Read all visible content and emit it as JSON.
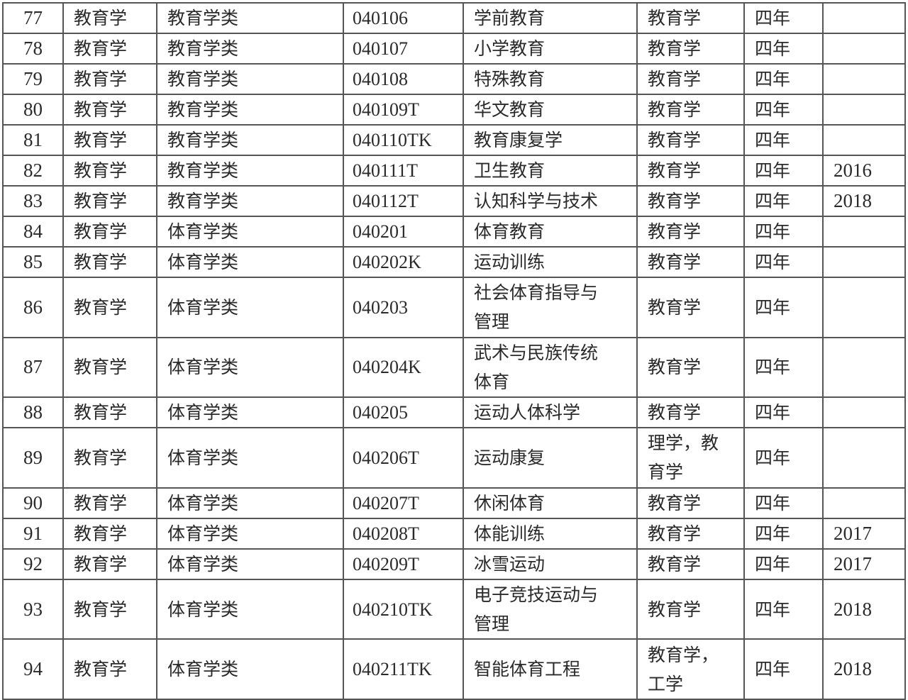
{
  "rows": [
    {
      "no": "77",
      "category": "教育学",
      "class": "教育学类",
      "code": "040106",
      "major": "学前教育",
      "degree": "教育学",
      "years": "四年",
      "added": ""
    },
    {
      "no": "78",
      "category": "教育学",
      "class": "教育学类",
      "code": "040107",
      "major": "小学教育",
      "degree": "教育学",
      "years": "四年",
      "added": ""
    },
    {
      "no": "79",
      "category": "教育学",
      "class": "教育学类",
      "code": "040108",
      "major": "特殊教育",
      "degree": "教育学",
      "years": "四年",
      "added": ""
    },
    {
      "no": "80",
      "category": "教育学",
      "class": "教育学类",
      "code": "040109T",
      "major": "华文教育",
      "degree": "教育学",
      "years": "四年",
      "added": ""
    },
    {
      "no": "81",
      "category": "教育学",
      "class": "教育学类",
      "code": "040110TK",
      "major": "教育康复学",
      "degree": "教育学",
      "years": "四年",
      "added": ""
    },
    {
      "no": "82",
      "category": "教育学",
      "class": "教育学类",
      "code": "040111T",
      "major": "卫生教育",
      "degree": "教育学",
      "years": "四年",
      "added": "2016"
    },
    {
      "no": "83",
      "category": "教育学",
      "class": "教育学类",
      "code": "040112T",
      "major": "认知科学与技术",
      "degree": "教育学",
      "years": "四年",
      "added": "2018"
    },
    {
      "no": "84",
      "category": "教育学",
      "class": "体育学类",
      "code": "040201",
      "major": "体育教育",
      "degree": "教育学",
      "years": "四年",
      "added": ""
    },
    {
      "no": "85",
      "category": "教育学",
      "class": "体育学类",
      "code": "040202K",
      "major": "运动训练",
      "degree": "教育学",
      "years": "四年",
      "added": ""
    },
    {
      "no": "86",
      "category": "教育学",
      "class": "体育学类",
      "code": "040203",
      "major": "社会体育指导与管理",
      "degree": "教育学",
      "years": "四年",
      "added": ""
    },
    {
      "no": "87",
      "category": "教育学",
      "class": "体育学类",
      "code": "040204K",
      "major": "武术与民族传统体育",
      "degree": "教育学",
      "years": "四年",
      "added": ""
    },
    {
      "no": "88",
      "category": "教育学",
      "class": "体育学类",
      "code": "040205",
      "major": "运动人体科学",
      "degree": "教育学",
      "years": "四年",
      "added": ""
    },
    {
      "no": "89",
      "category": "教育学",
      "class": "体育学类",
      "code": "040206T",
      "major": "运动康复",
      "degree": "理学，教育学",
      "years": "四年",
      "added": ""
    },
    {
      "no": "90",
      "category": "教育学",
      "class": "体育学类",
      "code": "040207T",
      "major": "休闲体育",
      "degree": "教育学",
      "years": "四年",
      "added": ""
    },
    {
      "no": "91",
      "category": "教育学",
      "class": "体育学类",
      "code": "040208T",
      "major": "体能训练",
      "degree": "教育学",
      "years": "四年",
      "added": "2017"
    },
    {
      "no": "92",
      "category": "教育学",
      "class": "体育学类",
      "code": "040209T",
      "major": "冰雪运动",
      "degree": "教育学",
      "years": "四年",
      "added": "2017"
    },
    {
      "no": "93",
      "category": "教育学",
      "class": "体育学类",
      "code": "040210TK",
      "major": "电子竞技运动与管理",
      "degree": "教育学",
      "years": "四年",
      "added": "2018"
    },
    {
      "no": "94",
      "category": "教育学",
      "class": "体育学类",
      "code": "040211TK",
      "major": "智能体育工程",
      "degree": "教育学，工学",
      "years": "四年",
      "added": "2018"
    }
  ]
}
